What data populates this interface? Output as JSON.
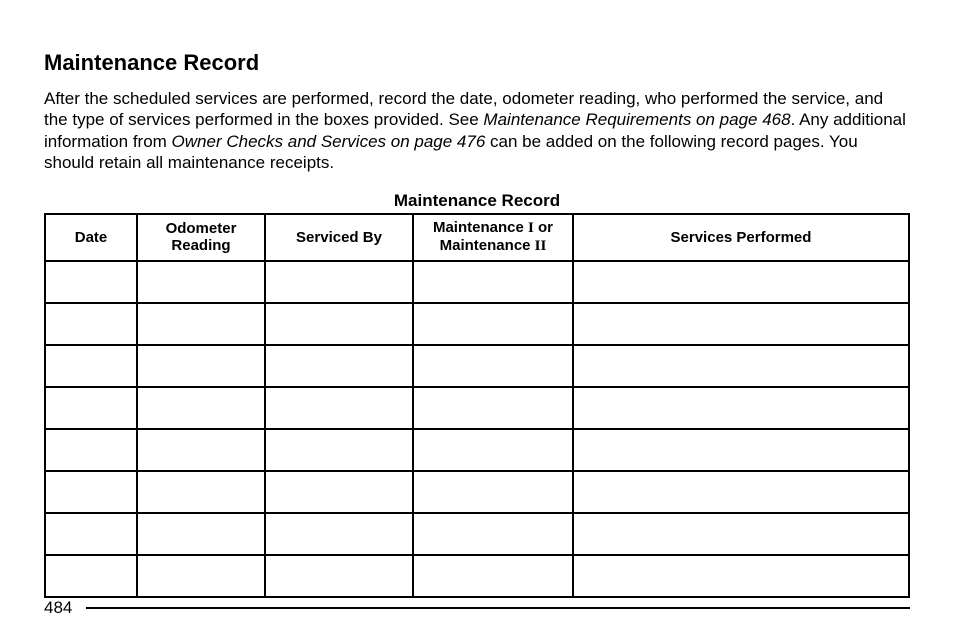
{
  "heading": "Maintenance Record",
  "intro": {
    "p1a": "After the scheduled services are performed, record the date, odometer reading, who performed the service, and the type of services performed in the boxes provided. See ",
    "ref1": "Maintenance Requirements on page 468",
    "p1b": ". Any additional information from ",
    "ref2": "Owner Checks and Services on page 476",
    "p1c": " can be added on the following record pages. You should retain all maintenance receipts."
  },
  "table": {
    "title": "Maintenance Record",
    "columns": {
      "date": "Date",
      "odometer": "Odometer Reading",
      "serviced_by": "Serviced By",
      "maint_a": "Maintenance ",
      "maint_i": "I",
      "maint_or": " or",
      "maint_b": "Maintenance ",
      "maint_ii": "II",
      "services": "Services Performed"
    },
    "blank_row_count": 8
  },
  "page_number": "484"
}
